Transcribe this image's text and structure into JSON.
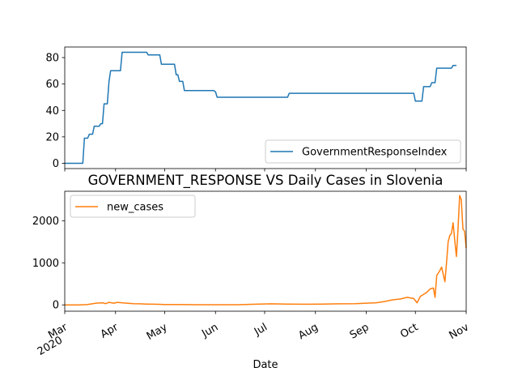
{
  "chart_data": [
    {
      "type": "line",
      "title": "",
      "xlabel": "",
      "ylabel": "",
      "ylim": [
        -4,
        88
      ],
      "yticks": [
        0,
        20,
        40,
        60,
        80
      ],
      "legend": "lower-right",
      "color": "#1f77b4",
      "series": [
        {
          "name": "GovernmentResponseIndex",
          "points": [
            [
              "2020-03-01",
              0
            ],
            [
              "2020-03-12",
              0
            ],
            [
              "2020-03-13",
              19
            ],
            [
              "2020-03-15",
              19
            ],
            [
              "2020-03-16",
              22
            ],
            [
              "2020-03-18",
              22
            ],
            [
              "2020-03-19",
              28
            ],
            [
              "2020-03-22",
              28
            ],
            [
              "2020-03-23",
              30
            ],
            [
              "2020-03-24",
              30
            ],
            [
              "2020-03-25",
              45
            ],
            [
              "2020-03-27",
              45
            ],
            [
              "2020-03-28",
              62
            ],
            [
              "2020-03-29",
              70
            ],
            [
              "2020-04-04",
              70
            ],
            [
              "2020-04-05",
              84
            ],
            [
              "2020-04-20",
              84
            ],
            [
              "2020-04-21",
              82
            ],
            [
              "2020-04-28",
              82
            ],
            [
              "2020-04-29",
              75
            ],
            [
              "2020-05-07",
              75
            ],
            [
              "2020-05-08",
              67
            ],
            [
              "2020-05-09",
              67
            ],
            [
              "2020-05-10",
              62
            ],
            [
              "2020-05-12",
              62
            ],
            [
              "2020-05-13",
              55
            ],
            [
              "2020-05-31",
              55
            ],
            [
              "2020-06-01",
              54
            ],
            [
              "2020-06-02",
              50
            ],
            [
              "2020-07-15",
              50
            ],
            [
              "2020-07-16",
              53
            ],
            [
              "2020-09-30",
              53
            ],
            [
              "2020-10-01",
              47
            ],
            [
              "2020-10-05",
              47
            ],
            [
              "2020-10-06",
              58
            ],
            [
              "2020-10-10",
              58
            ],
            [
              "2020-10-11",
              61
            ],
            [
              "2020-10-13",
              61
            ],
            [
              "2020-10-14",
              72
            ],
            [
              "2020-10-23",
              72
            ],
            [
              "2020-10-24",
              74
            ],
            [
              "2020-10-26",
              74
            ]
          ]
        }
      ]
    },
    {
      "type": "line",
      "title": "GOVERNMENT_RESPONSE VS Daily Cases in Slovenia",
      "xlabel": "Date",
      "ylabel": "",
      "ylim": [
        -150,
        2700
      ],
      "yticks": [
        0,
        1000,
        2000
      ],
      "xlim": [
        "2020-03-01",
        "2020-11-01"
      ],
      "xticks": [
        {
          "date": "2020-03-01",
          "label": "Mar",
          "sub": "2020"
        },
        {
          "date": "2020-04-01",
          "label": "Apr"
        },
        {
          "date": "2020-05-01",
          "label": "May"
        },
        {
          "date": "2020-06-01",
          "label": "Jun"
        },
        {
          "date": "2020-07-01",
          "label": "Jul"
        },
        {
          "date": "2020-08-01",
          "label": "Aug"
        },
        {
          "date": "2020-09-01",
          "label": "Sep"
        },
        {
          "date": "2020-10-01",
          "label": "Oct"
        },
        {
          "date": "2020-11-01",
          "label": "Nov"
        }
      ],
      "legend": "upper-left",
      "color": "#ff7f0e",
      "series": [
        {
          "name": "new_cases",
          "points": [
            [
              "2020-03-01",
              0
            ],
            [
              "2020-03-10",
              0
            ],
            [
              "2020-03-15",
              10
            ],
            [
              "2020-03-20",
              40
            ],
            [
              "2020-03-24",
              50
            ],
            [
              "2020-03-26",
              30
            ],
            [
              "2020-03-28",
              60
            ],
            [
              "2020-03-31",
              40
            ],
            [
              "2020-04-02",
              60
            ],
            [
              "2020-04-05",
              50
            ],
            [
              "2020-04-08",
              40
            ],
            [
              "2020-04-12",
              30
            ],
            [
              "2020-04-16",
              25
            ],
            [
              "2020-04-20",
              20
            ],
            [
              "2020-04-25",
              15
            ],
            [
              "2020-05-01",
              10
            ],
            [
              "2020-05-10",
              8
            ],
            [
              "2020-05-20",
              5
            ],
            [
              "2020-06-01",
              5
            ],
            [
              "2020-06-15",
              5
            ],
            [
              "2020-06-25",
              15
            ],
            [
              "2020-07-05",
              25
            ],
            [
              "2020-07-15",
              20
            ],
            [
              "2020-07-25",
              15
            ],
            [
              "2020-08-05",
              20
            ],
            [
              "2020-08-15",
              25
            ],
            [
              "2020-08-25",
              30
            ],
            [
              "2020-09-01",
              40
            ],
            [
              "2020-09-07",
              50
            ],
            [
              "2020-09-12",
              80
            ],
            [
              "2020-09-17",
              120
            ],
            [
              "2020-09-22",
              140
            ],
            [
              "2020-09-26",
              180
            ],
            [
              "2020-09-30",
              150
            ],
            [
              "2020-10-02",
              50
            ],
            [
              "2020-10-04",
              200
            ],
            [
              "2020-10-06",
              250
            ],
            [
              "2020-10-08",
              300
            ],
            [
              "2020-10-10",
              380
            ],
            [
              "2020-10-12",
              400
            ],
            [
              "2020-10-13",
              180
            ],
            [
              "2020-10-14",
              700
            ],
            [
              "2020-10-16",
              820
            ],
            [
              "2020-10-17",
              900
            ],
            [
              "2020-10-19",
              550
            ],
            [
              "2020-10-20",
              1000
            ],
            [
              "2020-10-21",
              1500
            ],
            [
              "2020-10-22",
              1650
            ],
            [
              "2020-10-23",
              1700
            ],
            [
              "2020-10-24",
              1950
            ],
            [
              "2020-10-25",
              1550
            ],
            [
              "2020-10-26",
              1150
            ],
            [
              "2020-10-27",
              1800
            ],
            [
              "2020-10-28",
              2600
            ],
            [
              "2020-10-29",
              2500
            ],
            [
              "2020-10-30",
              1800
            ],
            [
              "2020-10-31",
              1750
            ],
            [
              "2020-11-01",
              1350
            ]
          ]
        }
      ]
    }
  ]
}
